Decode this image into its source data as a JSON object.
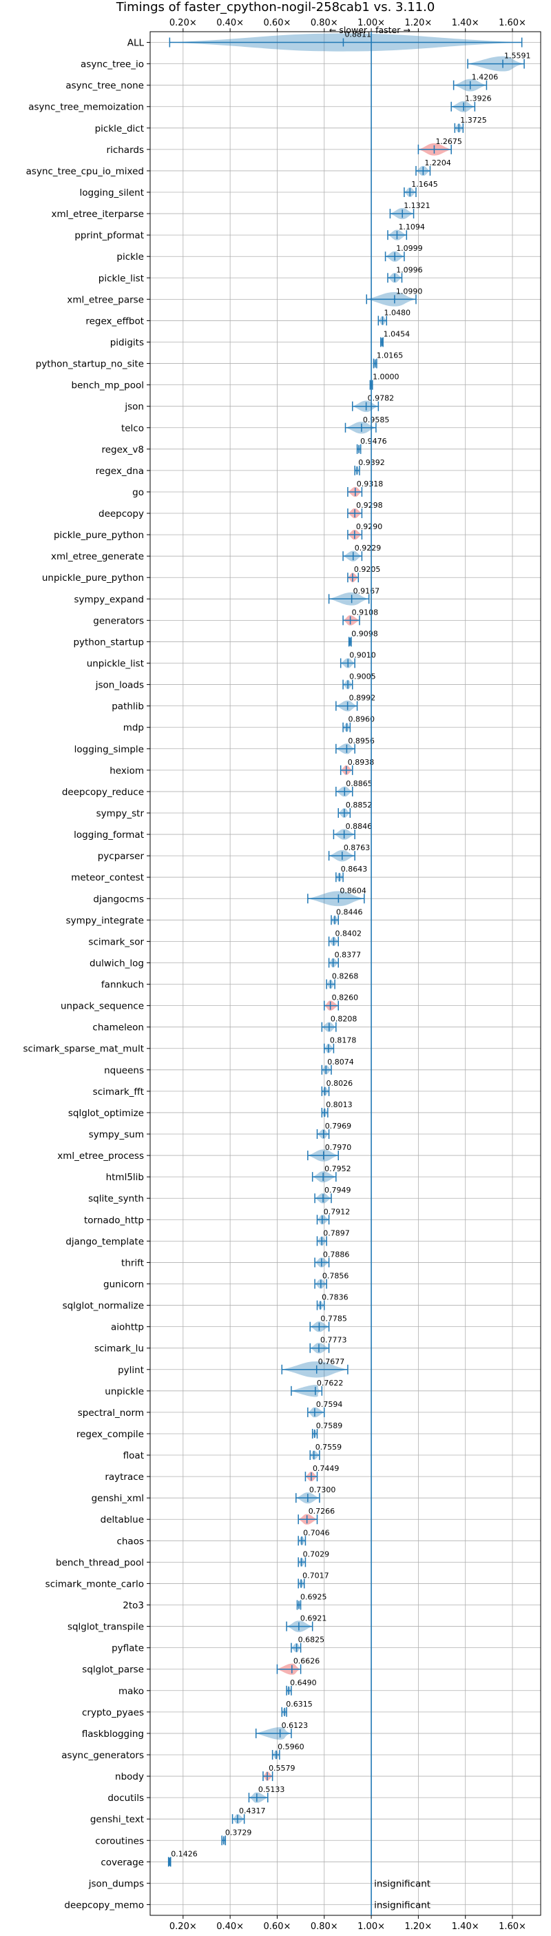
{
  "chart_data": {
    "type": "violin",
    "title": "Timings of faster_cpython-nogil-258cab1 vs. 3.11.0",
    "xlim": [
      0.06,
      1.72
    ],
    "xticks": [
      0.2,
      0.4,
      0.6,
      0.8,
      1.0,
      1.2,
      1.4,
      1.6
    ],
    "xtick_labels": [
      "0.20×",
      "0.40×",
      "0.60×",
      "0.80×",
      "1.00×",
      "1.20×",
      "1.40×",
      "1.60×"
    ],
    "reference_x": 1.0,
    "direction_labels": {
      "slower": "← slower",
      "faster": "faster →"
    },
    "insignificant_label": "insignificant",
    "grid": true,
    "colors": {
      "normal": "#1f77b4",
      "flagged": "#f08080",
      "grid": "#b0b0b0"
    },
    "benchmarks": [
      {
        "name": "ALL",
        "value": 0.8811,
        "min": 0.143,
        "max": 1.64,
        "flag": false,
        "insig": false
      },
      {
        "name": "async_tree_io",
        "value": 1.5591,
        "min": 1.41,
        "max": 1.65,
        "flag": false,
        "insig": false
      },
      {
        "name": "async_tree_none",
        "value": 1.4206,
        "min": 1.35,
        "max": 1.49,
        "flag": false,
        "insig": false
      },
      {
        "name": "async_tree_memoization",
        "value": 1.3926,
        "min": 1.34,
        "max": 1.44,
        "flag": false,
        "insig": false
      },
      {
        "name": "pickle_dict",
        "value": 1.3725,
        "min": 1.355,
        "max": 1.39,
        "flag": false,
        "insig": false
      },
      {
        "name": "richards",
        "value": 1.2675,
        "min": 1.2,
        "max": 1.34,
        "flag": true,
        "insig": false
      },
      {
        "name": "async_tree_cpu_io_mixed",
        "value": 1.2204,
        "min": 1.19,
        "max": 1.25,
        "flag": false,
        "insig": false
      },
      {
        "name": "logging_silent",
        "value": 1.1645,
        "min": 1.14,
        "max": 1.19,
        "flag": false,
        "insig": false
      },
      {
        "name": "xml_etree_iterparse",
        "value": 1.1321,
        "min": 1.08,
        "max": 1.18,
        "flag": false,
        "insig": false
      },
      {
        "name": "pprint_pformat",
        "value": 1.1094,
        "min": 1.07,
        "max": 1.15,
        "flag": false,
        "insig": false
      },
      {
        "name": "pickle",
        "value": 1.0999,
        "min": 1.06,
        "max": 1.14,
        "flag": false,
        "insig": false
      },
      {
        "name": "pickle_list",
        "value": 1.0996,
        "min": 1.07,
        "max": 1.13,
        "flag": false,
        "insig": false
      },
      {
        "name": "xml_etree_parse",
        "value": 1.099,
        "min": 0.98,
        "max": 1.19,
        "flag": false,
        "insig": false
      },
      {
        "name": "regex_effbot",
        "value": 1.048,
        "min": 1.03,
        "max": 1.065,
        "flag": false,
        "insig": false
      },
      {
        "name": "pidigits",
        "value": 1.0454,
        "min": 1.04,
        "max": 1.05,
        "flag": false,
        "insig": false
      },
      {
        "name": "python_startup_no_site",
        "value": 1.0165,
        "min": 1.01,
        "max": 1.023,
        "flag": false,
        "insig": false
      },
      {
        "name": "bench_mp_pool",
        "value": 1.0,
        "min": 0.995,
        "max": 1.005,
        "flag": false,
        "insig": false
      },
      {
        "name": "json",
        "value": 0.9782,
        "min": 0.92,
        "max": 1.03,
        "flag": false,
        "insig": false
      },
      {
        "name": "telco",
        "value": 0.9585,
        "min": 0.89,
        "max": 1.02,
        "flag": false,
        "insig": false
      },
      {
        "name": "regex_v8",
        "value": 0.9476,
        "min": 0.94,
        "max": 0.955,
        "flag": false,
        "insig": false
      },
      {
        "name": "regex_dna",
        "value": 0.9392,
        "min": 0.93,
        "max": 0.95,
        "flag": false,
        "insig": false
      },
      {
        "name": "go",
        "value": 0.9318,
        "min": 0.9,
        "max": 0.96,
        "flag": true,
        "insig": false
      },
      {
        "name": "deepcopy",
        "value": 0.9298,
        "min": 0.9,
        "max": 0.96,
        "flag": true,
        "insig": false
      },
      {
        "name": "pickle_pure_python",
        "value": 0.929,
        "min": 0.9,
        "max": 0.96,
        "flag": true,
        "insig": false
      },
      {
        "name": "xml_etree_generate",
        "value": 0.9229,
        "min": 0.88,
        "max": 0.96,
        "flag": false,
        "insig": false
      },
      {
        "name": "unpickle_pure_python",
        "value": 0.9205,
        "min": 0.9,
        "max": 0.945,
        "flag": true,
        "insig": false
      },
      {
        "name": "sympy_expand",
        "value": 0.9167,
        "min": 0.82,
        "max": 0.99,
        "flag": false,
        "insig": false
      },
      {
        "name": "generators",
        "value": 0.9108,
        "min": 0.88,
        "max": 0.95,
        "flag": true,
        "insig": false
      },
      {
        "name": "python_startup",
        "value": 0.9098,
        "min": 0.905,
        "max": 0.915,
        "flag": false,
        "insig": false
      },
      {
        "name": "unpickle_list",
        "value": 0.901,
        "min": 0.87,
        "max": 0.93,
        "flag": false,
        "insig": false
      },
      {
        "name": "json_loads",
        "value": 0.9005,
        "min": 0.88,
        "max": 0.92,
        "flag": false,
        "insig": false
      },
      {
        "name": "pathlib",
        "value": 0.8992,
        "min": 0.85,
        "max": 0.94,
        "flag": false,
        "insig": false
      },
      {
        "name": "mdp",
        "value": 0.896,
        "min": 0.88,
        "max": 0.91,
        "flag": false,
        "insig": false
      },
      {
        "name": "logging_simple",
        "value": 0.8956,
        "min": 0.85,
        "max": 0.93,
        "flag": false,
        "insig": false
      },
      {
        "name": "hexiom",
        "value": 0.8938,
        "min": 0.87,
        "max": 0.92,
        "flag": true,
        "insig": false
      },
      {
        "name": "deepcopy_reduce",
        "value": 0.8865,
        "min": 0.85,
        "max": 0.92,
        "flag": false,
        "insig": false
      },
      {
        "name": "sympy_str",
        "value": 0.8852,
        "min": 0.86,
        "max": 0.91,
        "flag": false,
        "insig": false
      },
      {
        "name": "logging_format",
        "value": 0.8846,
        "min": 0.84,
        "max": 0.93,
        "flag": false,
        "insig": false
      },
      {
        "name": "pycparser",
        "value": 0.8763,
        "min": 0.82,
        "max": 0.93,
        "flag": false,
        "insig": false
      },
      {
        "name": "meteor_contest",
        "value": 0.8643,
        "min": 0.85,
        "max": 0.88,
        "flag": false,
        "insig": false
      },
      {
        "name": "djangocms",
        "value": 0.8604,
        "min": 0.73,
        "max": 0.97,
        "flag": false,
        "insig": false
      },
      {
        "name": "sympy_integrate",
        "value": 0.8446,
        "min": 0.83,
        "max": 0.86,
        "flag": false,
        "insig": false
      },
      {
        "name": "scimark_sor",
        "value": 0.8402,
        "min": 0.82,
        "max": 0.86,
        "flag": false,
        "insig": false
      },
      {
        "name": "dulwich_log",
        "value": 0.8377,
        "min": 0.82,
        "max": 0.86,
        "flag": false,
        "insig": false
      },
      {
        "name": "fannkuch",
        "value": 0.8268,
        "min": 0.81,
        "max": 0.845,
        "flag": false,
        "insig": false
      },
      {
        "name": "unpack_sequence",
        "value": 0.826,
        "min": 0.8,
        "max": 0.86,
        "flag": true,
        "insig": false
      },
      {
        "name": "chameleon",
        "value": 0.8208,
        "min": 0.79,
        "max": 0.85,
        "flag": false,
        "insig": false
      },
      {
        "name": "scimark_sparse_mat_mult",
        "value": 0.8178,
        "min": 0.8,
        "max": 0.84,
        "flag": false,
        "insig": false
      },
      {
        "name": "nqueens",
        "value": 0.8074,
        "min": 0.79,
        "max": 0.83,
        "flag": false,
        "insig": false
      },
      {
        "name": "scimark_fft",
        "value": 0.8026,
        "min": 0.79,
        "max": 0.82,
        "flag": false,
        "insig": false
      },
      {
        "name": "sqlglot_optimize",
        "value": 0.8013,
        "min": 0.79,
        "max": 0.815,
        "flag": false,
        "insig": false
      },
      {
        "name": "sympy_sum",
        "value": 0.7969,
        "min": 0.77,
        "max": 0.82,
        "flag": false,
        "insig": false
      },
      {
        "name": "xml_etree_process",
        "value": 0.797,
        "min": 0.73,
        "max": 0.86,
        "flag": false,
        "insig": false
      },
      {
        "name": "html5lib",
        "value": 0.7952,
        "min": 0.75,
        "max": 0.85,
        "flag": false,
        "insig": false
      },
      {
        "name": "sqlite_synth",
        "value": 0.7949,
        "min": 0.76,
        "max": 0.83,
        "flag": false,
        "insig": false
      },
      {
        "name": "tornado_http",
        "value": 0.7912,
        "min": 0.77,
        "max": 0.82,
        "flag": false,
        "insig": false
      },
      {
        "name": "django_template",
        "value": 0.7897,
        "min": 0.77,
        "max": 0.81,
        "flag": false,
        "insig": false
      },
      {
        "name": "thrift",
        "value": 0.7886,
        "min": 0.76,
        "max": 0.82,
        "flag": false,
        "insig": false
      },
      {
        "name": "gunicorn",
        "value": 0.7856,
        "min": 0.76,
        "max": 0.81,
        "flag": false,
        "insig": false
      },
      {
        "name": "sqlglot_normalize",
        "value": 0.7836,
        "min": 0.77,
        "max": 0.8,
        "flag": false,
        "insig": false
      },
      {
        "name": "aiohttp",
        "value": 0.7785,
        "min": 0.74,
        "max": 0.82,
        "flag": false,
        "insig": false
      },
      {
        "name": "scimark_lu",
        "value": 0.7773,
        "min": 0.74,
        "max": 0.82,
        "flag": false,
        "insig": false
      },
      {
        "name": "pylint",
        "value": 0.7677,
        "min": 0.62,
        "max": 0.9,
        "flag": false,
        "insig": false
      },
      {
        "name": "unpickle",
        "value": 0.7622,
        "min": 0.66,
        "max": 0.79,
        "flag": false,
        "insig": false
      },
      {
        "name": "spectral_norm",
        "value": 0.7594,
        "min": 0.73,
        "max": 0.8,
        "flag": false,
        "insig": false
      },
      {
        "name": "regex_compile",
        "value": 0.7589,
        "min": 0.75,
        "max": 0.77,
        "flag": false,
        "insig": false
      },
      {
        "name": "float",
        "value": 0.7559,
        "min": 0.74,
        "max": 0.78,
        "flag": false,
        "insig": false
      },
      {
        "name": "raytrace",
        "value": 0.7449,
        "min": 0.72,
        "max": 0.77,
        "flag": true,
        "insig": false
      },
      {
        "name": "genshi_xml",
        "value": 0.73,
        "min": 0.68,
        "max": 0.78,
        "flag": false,
        "insig": false
      },
      {
        "name": "deltablue",
        "value": 0.7266,
        "min": 0.69,
        "max": 0.77,
        "flag": true,
        "insig": false
      },
      {
        "name": "chaos",
        "value": 0.7046,
        "min": 0.69,
        "max": 0.72,
        "flag": false,
        "insig": false
      },
      {
        "name": "bench_thread_pool",
        "value": 0.7029,
        "min": 0.69,
        "max": 0.72,
        "flag": false,
        "insig": false
      },
      {
        "name": "scimark_monte_carlo",
        "value": 0.7017,
        "min": 0.69,
        "max": 0.715,
        "flag": false,
        "insig": false
      },
      {
        "name": "2to3",
        "value": 0.6925,
        "min": 0.685,
        "max": 0.7,
        "flag": false,
        "insig": false
      },
      {
        "name": "sqlglot_transpile",
        "value": 0.6921,
        "min": 0.64,
        "max": 0.75,
        "flag": false,
        "insig": false
      },
      {
        "name": "pyflate",
        "value": 0.6825,
        "min": 0.66,
        "max": 0.7,
        "flag": false,
        "insig": false
      },
      {
        "name": "sqlglot_parse",
        "value": 0.6626,
        "min": 0.6,
        "max": 0.7,
        "flag": true,
        "insig": false
      },
      {
        "name": "mako",
        "value": 0.649,
        "min": 0.64,
        "max": 0.66,
        "flag": false,
        "insig": false
      },
      {
        "name": "crypto_pyaes",
        "value": 0.6315,
        "min": 0.62,
        "max": 0.64,
        "flag": false,
        "insig": false
      },
      {
        "name": "flaskblogging",
        "value": 0.6123,
        "min": 0.51,
        "max": 0.66,
        "flag": false,
        "insig": false
      },
      {
        "name": "async_generators",
        "value": 0.596,
        "min": 0.58,
        "max": 0.61,
        "flag": false,
        "insig": false
      },
      {
        "name": "nbody",
        "value": 0.5579,
        "min": 0.54,
        "max": 0.58,
        "flag": true,
        "insig": false
      },
      {
        "name": "docutils",
        "value": 0.5133,
        "min": 0.48,
        "max": 0.56,
        "flag": false,
        "insig": false
      },
      {
        "name": "genshi_text",
        "value": 0.4317,
        "min": 0.41,
        "max": 0.46,
        "flag": false,
        "insig": false
      },
      {
        "name": "coroutines",
        "value": 0.3729,
        "min": 0.365,
        "max": 0.38,
        "flag": false,
        "insig": false
      },
      {
        "name": "coverage",
        "value": 0.1426,
        "min": 0.138,
        "max": 0.147,
        "flag": false,
        "insig": false
      },
      {
        "name": "json_dumps",
        "value": null,
        "min": null,
        "max": null,
        "flag": false,
        "insig": true
      },
      {
        "name": "deepcopy_memo",
        "value": null,
        "min": null,
        "max": null,
        "flag": false,
        "insig": true
      }
    ]
  }
}
